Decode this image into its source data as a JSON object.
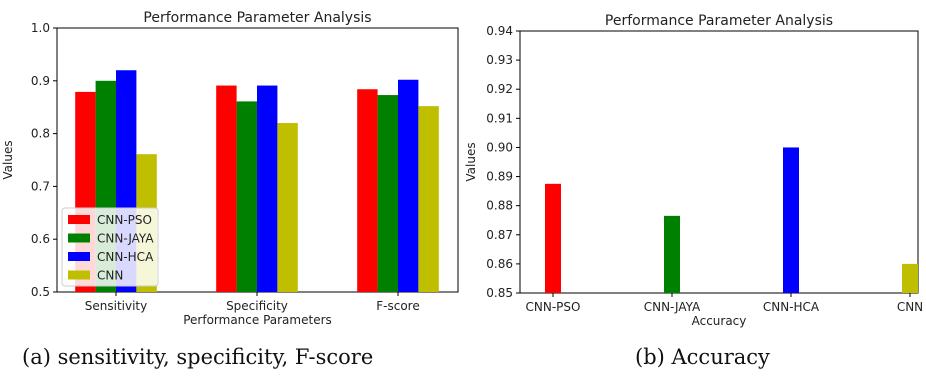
{
  "chart_data": [
    {
      "type": "bar",
      "title": "Performance Parameter Analysis",
      "xlabel": "Performance Parameters",
      "ylabel": "Values",
      "categories": [
        "Sensitivity",
        "Specificity",
        "F-score"
      ],
      "ylim": [
        0.5,
        1.0
      ],
      "yticks": [
        "0.5",
        "0.6",
        "0.7",
        "0.8",
        "0.9",
        "1.0"
      ],
      "legend_position": "lower-left",
      "grid": false,
      "series": [
        {
          "name": "CNN-PSO",
          "color": "#ff0000",
          "values": [
            0.879,
            0.891,
            0.884
          ]
        },
        {
          "name": "CNN-JAYA",
          "color": "#008000",
          "values": [
            0.9,
            0.861,
            0.873
          ]
        },
        {
          "name": "CNN-HCA",
          "color": "#0000ff",
          "values": [
            0.92,
            0.891,
            0.902
          ]
        },
        {
          "name": "CNN",
          "color": "#bfbf00",
          "values": [
            0.761,
            0.82,
            0.852
          ]
        }
      ]
    },
    {
      "type": "bar",
      "title": "Performance Parameter Analysis",
      "xlabel": "Accuracy",
      "ylabel": "Values",
      "categories": [
        "CNN-PSO",
        "CNN-JAYA",
        "CNN-HCA",
        "CNN"
      ],
      "values": [
        0.8875,
        0.8765,
        0.9,
        0.86
      ],
      "colors": [
        "#ff0000",
        "#008000",
        "#0000ff",
        "#bfbf00"
      ],
      "ylim": [
        0.85,
        0.94
      ],
      "yticks": [
        "0.85",
        "0.86",
        "0.87",
        "0.88",
        "0.89",
        "0.90",
        "0.91",
        "0.92",
        "0.93",
        "0.94"
      ],
      "grid": false
    }
  ],
  "captions": {
    "a": "(a) sensitivity, specificity, F-score",
    "b": "(b) Accuracy"
  }
}
